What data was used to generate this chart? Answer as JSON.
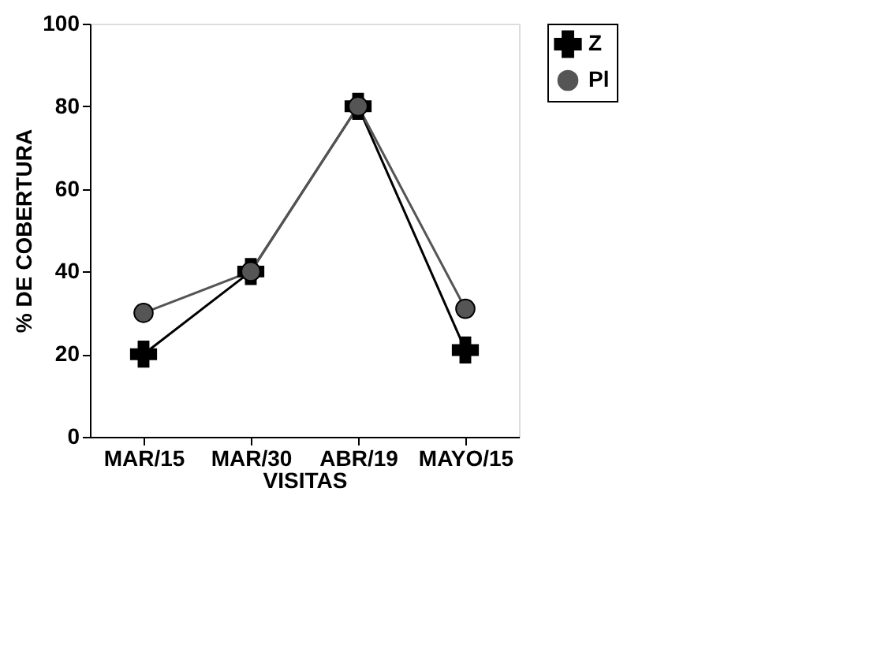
{
  "chart_data": {
    "type": "line",
    "xlabel": "VISITAS",
    "ylabel": "% DE COBERTURA",
    "categories": [
      "MAR/15",
      "MAR/30",
      "ABR/19",
      "MAYO/15"
    ],
    "series": [
      {
        "name": "Z",
        "color": "#000000",
        "marker": "cross",
        "values": [
          20,
          40,
          80,
          21
        ]
      },
      {
        "name": "Pl",
        "color": "#555555",
        "marker": "circle",
        "values": [
          30,
          40,
          80,
          31
        ]
      }
    ],
    "ylim": [
      0,
      100
    ],
    "yticks": [
      0,
      20,
      40,
      60,
      80,
      100
    ],
    "grid": false,
    "legend": "right"
  }
}
